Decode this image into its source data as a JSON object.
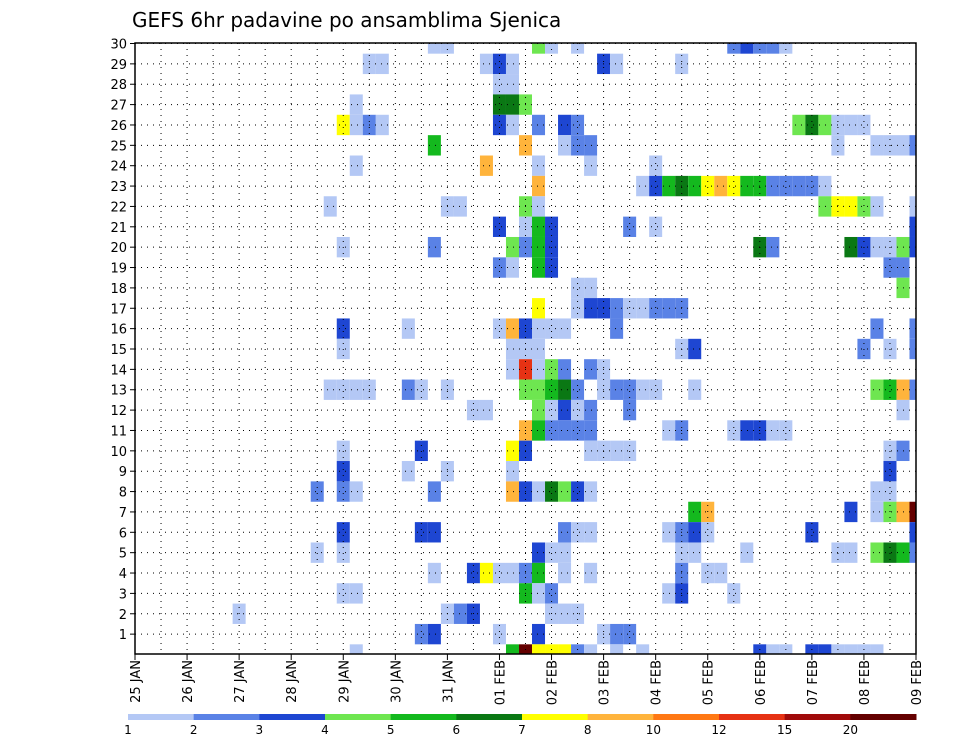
{
  "chart_data": {
    "type": "heatmap",
    "title": "GEFS 6hr padavine po ansamblima Sjenica",
    "xlabel": "",
    "ylabel": "",
    "x_tick_labels": [
      "25 JAN",
      "26 JAN",
      "27 JAN",
      "28 JAN",
      "29 JAN",
      "30 JAN",
      "31 JAN",
      "01 FEB",
      "02 FEB",
      "03 FEB",
      "04 FEB",
      "05 FEB",
      "06 FEB",
      "07 FEB",
      "08 FEB",
      "09 FEB"
    ],
    "y_range": [
      0,
      30
    ],
    "y_ticks": [
      1,
      2,
      3,
      4,
      5,
      6,
      7,
      8,
      9,
      10,
      11,
      12,
      13,
      14,
      15,
      16,
      17,
      18,
      19,
      20,
      21,
      22,
      23,
      24,
      25,
      26,
      27,
      28,
      29,
      30
    ],
    "x_range_steps": [
      0,
      60
    ],
    "steps_per_day": 4,
    "grid": true,
    "colorbar": {
      "labels": [
        "1",
        "2",
        "3",
        "4",
        "5",
        "6",
        "7",
        "8",
        "10",
        "12",
        "15",
        "20"
      ],
      "colors": [
        "#b4c8f5",
        "#5a82e6",
        "#1e46d2",
        "#6ee650",
        "#14b91e",
        "#0a7814",
        "#ffff00",
        "#ffb43c",
        "#ff7814",
        "#e63214",
        "#a00a0a",
        "#640000"
      ]
    },
    "cells": [
      [
        23,
        30,
        1
      ],
      [
        24,
        30,
        1
      ],
      [
        31,
        30,
        4
      ],
      [
        32,
        30,
        1
      ],
      [
        34,
        30,
        1
      ],
      [
        46,
        30,
        2
      ],
      [
        47,
        30,
        3
      ],
      [
        48,
        30,
        2
      ],
      [
        49,
        30,
        2
      ],
      [
        50,
        30,
        1
      ],
      [
        18,
        29,
        1
      ],
      [
        19,
        29,
        1
      ],
      [
        27,
        29,
        1
      ],
      [
        28,
        29,
        3
      ],
      [
        29,
        29,
        1
      ],
      [
        36,
        29,
        3
      ],
      [
        37,
        29,
        1
      ],
      [
        42,
        29,
        1
      ],
      [
        28,
        28,
        1
      ],
      [
        29,
        28,
        1
      ],
      [
        17,
        27,
        1
      ],
      [
        28,
        27,
        6
      ],
      [
        29,
        27,
        6
      ],
      [
        30,
        27,
        4
      ],
      [
        16,
        26,
        7
      ],
      [
        17,
        26,
        1
      ],
      [
        18,
        26,
        2
      ],
      [
        19,
        26,
        1
      ],
      [
        28,
        26,
        3
      ],
      [
        29,
        26,
        1
      ],
      [
        31,
        26,
        2
      ],
      [
        33,
        26,
        3
      ],
      [
        34,
        26,
        2
      ],
      [
        51,
        26,
        4
      ],
      [
        52,
        26,
        6
      ],
      [
        53,
        26,
        4
      ],
      [
        54,
        26,
        1
      ],
      [
        55,
        26,
        1
      ],
      [
        56,
        26,
        1
      ],
      [
        23,
        25,
        5
      ],
      [
        30,
        25,
        8
      ],
      [
        33,
        25,
        1
      ],
      [
        34,
        25,
        2
      ],
      [
        35,
        25,
        2
      ],
      [
        54,
        25,
        1
      ],
      [
        57,
        25,
        1
      ],
      [
        58,
        25,
        1
      ],
      [
        59,
        25,
        1
      ],
      [
        60,
        25,
        2
      ],
      [
        17,
        24,
        1
      ],
      [
        27,
        24,
        8
      ],
      [
        31,
        24,
        1
      ],
      [
        35,
        24,
        1
      ],
      [
        40,
        24,
        1
      ],
      [
        31,
        23,
        8
      ],
      [
        39,
        23,
        1
      ],
      [
        40,
        23,
        3
      ],
      [
        41,
        23,
        5
      ],
      [
        42,
        23,
        6
      ],
      [
        43,
        23,
        5
      ],
      [
        44,
        23,
        7
      ],
      [
        45,
        23,
        8
      ],
      [
        46,
        23,
        7
      ],
      [
        47,
        23,
        5
      ],
      [
        48,
        23,
        5
      ],
      [
        49,
        23,
        2
      ],
      [
        50,
        23,
        2
      ],
      [
        51,
        23,
        2
      ],
      [
        52,
        23,
        2
      ],
      [
        53,
        23,
        1
      ],
      [
        15,
        22,
        1
      ],
      [
        24,
        22,
        1
      ],
      [
        25,
        22,
        1
      ],
      [
        30,
        22,
        4
      ],
      [
        31,
        22,
        1
      ],
      [
        53,
        22,
        4
      ],
      [
        54,
        22,
        7
      ],
      [
        55,
        22,
        7
      ],
      [
        56,
        22,
        4
      ],
      [
        57,
        22,
        1
      ],
      [
        60,
        22,
        1
      ],
      [
        28,
        21,
        3
      ],
      [
        30,
        21,
        1
      ],
      [
        31,
        21,
        5
      ],
      [
        32,
        21,
        3
      ],
      [
        38,
        21,
        2
      ],
      [
        40,
        21,
        1
      ],
      [
        60,
        21,
        3
      ],
      [
        16,
        20,
        1
      ],
      [
        23,
        20,
        2
      ],
      [
        29,
        20,
        4
      ],
      [
        30,
        20,
        2
      ],
      [
        31,
        20,
        5
      ],
      [
        32,
        20,
        3
      ],
      [
        48,
        20,
        6
      ],
      [
        49,
        20,
        2
      ],
      [
        55,
        20,
        6
      ],
      [
        56,
        20,
        3
      ],
      [
        57,
        20,
        1
      ],
      [
        58,
        20,
        1
      ],
      [
        59,
        20,
        4
      ],
      [
        60,
        20,
        3
      ],
      [
        28,
        19,
        2
      ],
      [
        29,
        19,
        1
      ],
      [
        31,
        19,
        5
      ],
      [
        32,
        19,
        3
      ],
      [
        58,
        19,
        2
      ],
      [
        59,
        19,
        2
      ],
      [
        34,
        18,
        1
      ],
      [
        35,
        18,
        1
      ],
      [
        59,
        18,
        4
      ],
      [
        31,
        17,
        7
      ],
      [
        34,
        17,
        1
      ],
      [
        35,
        17,
        3
      ],
      [
        36,
        17,
        3
      ],
      [
        37,
        17,
        2
      ],
      [
        38,
        17,
        1
      ],
      [
        39,
        17,
        1
      ],
      [
        40,
        17,
        2
      ],
      [
        41,
        17,
        2
      ],
      [
        42,
        17,
        2
      ],
      [
        16,
        16,
        3
      ],
      [
        21,
        16,
        1
      ],
      [
        28,
        16,
        1
      ],
      [
        29,
        16,
        8
      ],
      [
        30,
        16,
        3
      ],
      [
        31,
        16,
        1
      ],
      [
        32,
        16,
        1
      ],
      [
        33,
        16,
        1
      ],
      [
        37,
        16,
        2
      ],
      [
        57,
        16,
        2
      ],
      [
        60,
        16,
        2
      ],
      [
        16,
        15,
        1
      ],
      [
        29,
        15,
        1
      ],
      [
        30,
        15,
        1
      ],
      [
        31,
        15,
        1
      ],
      [
        42,
        15,
        1
      ],
      [
        43,
        15,
        3
      ],
      [
        56,
        15,
        2
      ],
      [
        58,
        15,
        1
      ],
      [
        60,
        15,
        2
      ],
      [
        29,
        14,
        1
      ],
      [
        30,
        14,
        10
      ],
      [
        31,
        14,
        1
      ],
      [
        32,
        14,
        4
      ],
      [
        33,
        14,
        2
      ],
      [
        35,
        14,
        2
      ],
      [
        36,
        14,
        1
      ],
      [
        15,
        13,
        1
      ],
      [
        16,
        13,
        1
      ],
      [
        17,
        13,
        1
      ],
      [
        18,
        13,
        1
      ],
      [
        21,
        13,
        2
      ],
      [
        22,
        13,
        1
      ],
      [
        24,
        13,
        1
      ],
      [
        30,
        13,
        4
      ],
      [
        31,
        13,
        4
      ],
      [
        32,
        13,
        5
      ],
      [
        33,
        13,
        6
      ],
      [
        34,
        13,
        2
      ],
      [
        36,
        13,
        1
      ],
      [
        37,
        13,
        2
      ],
      [
        38,
        13,
        2
      ],
      [
        39,
        13,
        1
      ],
      [
        40,
        13,
        1
      ],
      [
        43,
        13,
        1
      ],
      [
        57,
        13,
        4
      ],
      [
        58,
        13,
        5
      ],
      [
        59,
        13,
        8
      ],
      [
        60,
        13,
        2
      ],
      [
        26,
        12,
        1
      ],
      [
        27,
        12,
        1
      ],
      [
        31,
        12,
        4
      ],
      [
        32,
        12,
        1
      ],
      [
        33,
        12,
        3
      ],
      [
        34,
        12,
        1
      ],
      [
        35,
        12,
        2
      ],
      [
        38,
        12,
        2
      ],
      [
        59,
        12,
        1
      ],
      [
        30,
        11,
        8
      ],
      [
        31,
        11,
        5
      ],
      [
        32,
        11,
        2
      ],
      [
        33,
        11,
        2
      ],
      [
        34,
        11,
        2
      ],
      [
        35,
        11,
        2
      ],
      [
        41,
        11,
        1
      ],
      [
        42,
        11,
        2
      ],
      [
        46,
        11,
        1
      ],
      [
        47,
        11,
        3
      ],
      [
        48,
        11,
        3
      ],
      [
        49,
        11,
        1
      ],
      [
        50,
        11,
        1
      ],
      [
        16,
        10,
        1
      ],
      [
        22,
        10,
        3
      ],
      [
        29,
        10,
        7
      ],
      [
        30,
        10,
        3
      ],
      [
        35,
        10,
        1
      ],
      [
        36,
        10,
        1
      ],
      [
        37,
        10,
        1
      ],
      [
        38,
        10,
        1
      ],
      [
        58,
        10,
        1
      ],
      [
        59,
        10,
        2
      ],
      [
        16,
        9,
        3
      ],
      [
        21,
        9,
        1
      ],
      [
        24,
        9,
        1
      ],
      [
        29,
        9,
        1
      ],
      [
        58,
        9,
        3
      ],
      [
        14,
        8,
        2
      ],
      [
        16,
        8,
        2
      ],
      [
        17,
        8,
        1
      ],
      [
        23,
        8,
        2
      ],
      [
        29,
        8,
        8
      ],
      [
        30,
        8,
        3
      ],
      [
        31,
        8,
        1
      ],
      [
        32,
        8,
        6
      ],
      [
        33,
        8,
        4
      ],
      [
        34,
        8,
        3
      ],
      [
        35,
        8,
        1
      ],
      [
        57,
        8,
        1
      ],
      [
        58,
        8,
        1
      ],
      [
        43,
        7,
        5
      ],
      [
        44,
        7,
        8
      ],
      [
        55,
        7,
        3
      ],
      [
        57,
        7,
        1
      ],
      [
        58,
        7,
        4
      ],
      [
        59,
        7,
        8
      ],
      [
        60,
        7,
        12
      ],
      [
        16,
        6,
        3
      ],
      [
        22,
        6,
        3
      ],
      [
        23,
        6,
        3
      ],
      [
        33,
        6,
        2
      ],
      [
        34,
        6,
        1
      ],
      [
        35,
        6,
        1
      ],
      [
        41,
        6,
        1
      ],
      [
        42,
        6,
        2
      ],
      [
        43,
        6,
        3
      ],
      [
        44,
        6,
        1
      ],
      [
        52,
        6,
        3
      ],
      [
        60,
        6,
        3
      ],
      [
        14,
        5,
        1
      ],
      [
        16,
        5,
        1
      ],
      [
        31,
        5,
        3
      ],
      [
        32,
        5,
        1
      ],
      [
        33,
        5,
        1
      ],
      [
        42,
        5,
        1
      ],
      [
        43,
        5,
        1
      ],
      [
        47,
        5,
        1
      ],
      [
        54,
        5,
        1
      ],
      [
        55,
        5,
        1
      ],
      [
        57,
        5,
        4
      ],
      [
        58,
        5,
        6
      ],
      [
        59,
        5,
        5
      ],
      [
        60,
        5,
        2
      ],
      [
        23,
        4,
        1
      ],
      [
        26,
        4,
        3
      ],
      [
        27,
        4,
        7
      ],
      [
        28,
        4,
        1
      ],
      [
        29,
        4,
        1
      ],
      [
        30,
        4,
        2
      ],
      [
        31,
        4,
        5
      ],
      [
        33,
        4,
        1
      ],
      [
        35,
        4,
        1
      ],
      [
        42,
        4,
        2
      ],
      [
        44,
        4,
        1
      ],
      [
        45,
        4,
        1
      ],
      [
        16,
        3,
        1
      ],
      [
        17,
        3,
        1
      ],
      [
        30,
        3,
        5
      ],
      [
        31,
        3,
        1
      ],
      [
        32,
        3,
        2
      ],
      [
        41,
        3,
        1
      ],
      [
        42,
        3,
        3
      ],
      [
        46,
        3,
        1
      ],
      [
        8,
        2,
        1
      ],
      [
        24,
        2,
        1
      ],
      [
        25,
        2,
        2
      ],
      [
        26,
        2,
        3
      ],
      [
        32,
        2,
        1
      ],
      [
        33,
        2,
        1
      ],
      [
        34,
        2,
        1
      ],
      [
        22,
        1,
        2
      ],
      [
        23,
        1,
        3
      ],
      [
        28,
        1,
        1
      ],
      [
        31,
        1,
        3
      ],
      [
        36,
        1,
        1
      ],
      [
        37,
        1,
        2
      ],
      [
        38,
        1,
        2
      ],
      [
        17,
        0,
        1
      ],
      [
        29,
        0,
        5
      ],
      [
        30,
        0,
        12
      ],
      [
        31,
        0,
        7
      ],
      [
        32,
        0,
        7
      ],
      [
        33,
        0,
        7
      ],
      [
        34,
        0,
        2
      ],
      [
        35,
        0,
        1
      ],
      [
        37,
        0,
        1
      ],
      [
        39,
        0,
        1
      ],
      [
        48,
        0,
        3
      ],
      [
        49,
        0,
        1
      ],
      [
        50,
        0,
        1
      ],
      [
        52,
        0,
        3
      ],
      [
        53,
        0,
        3
      ],
      [
        54,
        0,
        1
      ],
      [
        55,
        0,
        1
      ],
      [
        56,
        0,
        1
      ],
      [
        57,
        0,
        1
      ]
    ]
  }
}
